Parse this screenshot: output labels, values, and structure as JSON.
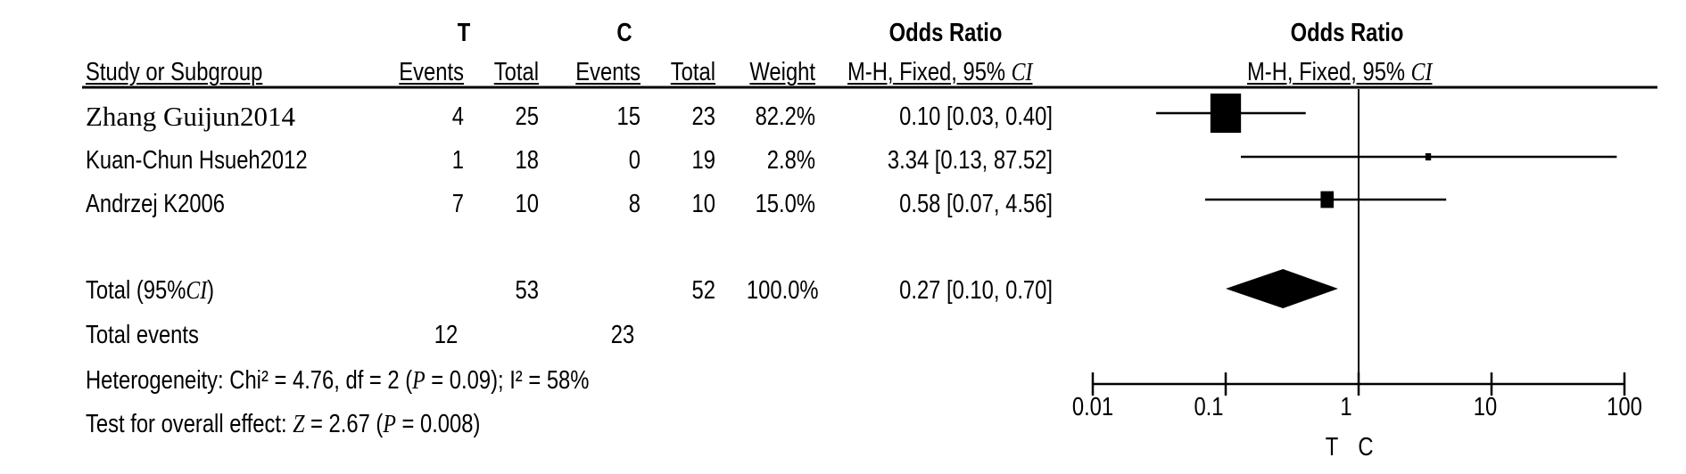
{
  "headers": {
    "group_t": "T",
    "group_c": "C",
    "odds_ratio_left": "Odds Ratio",
    "odds_ratio_right": "Odds Ratio",
    "study": "Study or Subgroup",
    "t_events": "Events",
    "t_total": "Total",
    "c_events": "Events",
    "c_total": "Total",
    "weight": "Weight",
    "method_left": "M-H, Fixed, 95% ",
    "method_left_ci": "CI",
    "method_right": "M-H, Fixed, 95% ",
    "method_right_ci": "CI"
  },
  "studies": [
    {
      "name": "Zhang Guijun2014",
      "t_events": "4",
      "t_total": "25",
      "c_events": "15",
      "c_total": "23",
      "weight": "82.2%",
      "or_text": "0.10 [0.03, 0.40]"
    },
    {
      "name": "Kuan-Chun Hsueh2012",
      "t_events": "1",
      "t_total": "18",
      "c_events": "0",
      "c_total": "19",
      "weight": "2.8%",
      "or_text": "3.34 [0.13, 87.52]"
    },
    {
      "name": "Andrzej K2006",
      "t_events": "7",
      "t_total": "10",
      "c_events": "8",
      "c_total": "10",
      "weight": "15.0%",
      "or_text": "0.58 [0.07, 4.56]"
    }
  ],
  "total": {
    "label_prefix": "Total (95%",
    "label_ci": "CI",
    "label_suffix": ")",
    "t_total": "53",
    "c_total": "52",
    "weight": "100.0%",
    "or_text": "0.27 [0.10, 0.70]"
  },
  "total_events": {
    "label": "Total events",
    "t": "12",
    "c": "23"
  },
  "heterogeneity": {
    "prefix": "Heterogeneity: Chi² = 4.76, df = 2 (",
    "p": "P",
    "middle": " = 0.09); I² = 58%"
  },
  "overall_effect": {
    "prefix": "Test for overall effect: ",
    "z": "Z",
    "middle": " = 2.67 (",
    "p": "P",
    "suffix": " = 0.008)"
  },
  "axis_footer": {
    "left": "T",
    "right": "C"
  },
  "chart_data": {
    "type": "forest",
    "scale": "log",
    "xlim": [
      0.01,
      100
    ],
    "ticks": [
      0.01,
      0.1,
      1,
      10,
      100
    ],
    "tick_labels": [
      "0.01",
      "0.1",
      "1",
      "10",
      "100"
    ],
    "reference_line": 1,
    "studies": [
      {
        "name": "Zhang Guijun2014",
        "or": 0.1,
        "lower": 0.03,
        "upper": 0.4,
        "weight": 82.2
      },
      {
        "name": "Kuan-Chun Hsueh2012",
        "or": 3.34,
        "lower": 0.13,
        "upper": 87.52,
        "weight": 2.8
      },
      {
        "name": "Andrzej K2006",
        "or": 0.58,
        "lower": 0.07,
        "upper": 4.56,
        "weight": 15.0
      }
    ],
    "pooled": {
      "or": 0.27,
      "lower": 0.1,
      "upper": 0.7
    },
    "colors": {
      "marks": "#000000"
    }
  }
}
